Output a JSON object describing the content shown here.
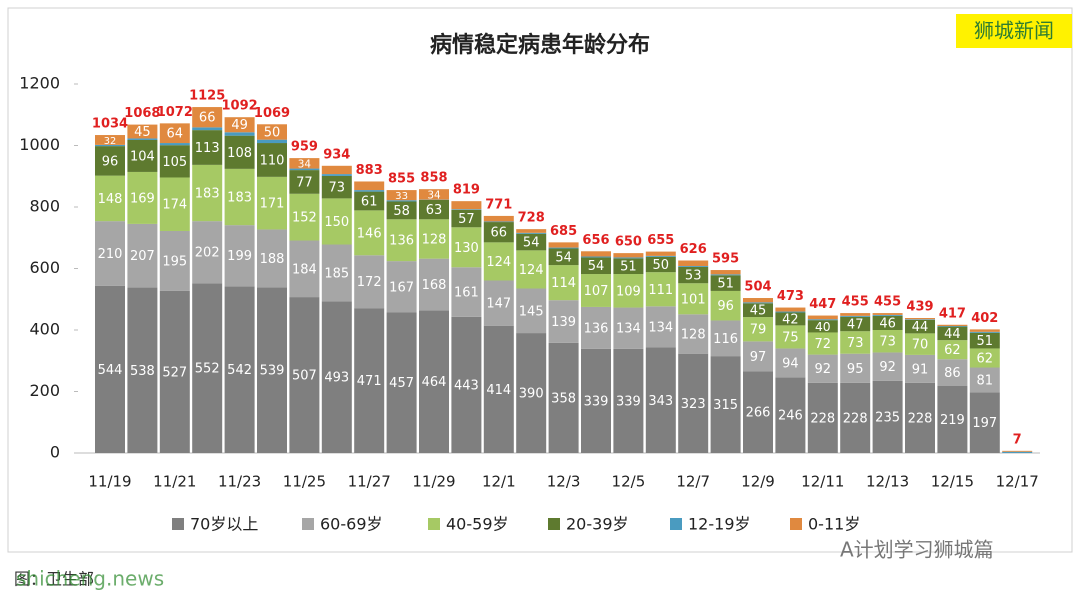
{
  "chart_data": {
    "type": "stacked_bar",
    "title": "病情稳定病患年龄分布",
    "categories": [
      "11/19",
      null,
      "11/21",
      null,
      "11/23",
      null,
      "11/25",
      null,
      "11/27",
      null,
      "11/29",
      null,
      "12/1",
      null,
      "12/3",
      null,
      "12/5",
      null,
      "12/7",
      null,
      "12/9",
      null,
      "12/11",
      null,
      "12/13",
      null,
      "12/15",
      null,
      "12/17"
    ],
    "series": [
      {
        "name": "70岁以上",
        "color": "#7f7f7f",
        "values": [
          544,
          538,
          527,
          552,
          542,
          539,
          507,
          493,
          471,
          457,
          464,
          443,
          414,
          390,
          358,
          339,
          339,
          343,
          323,
          315,
          266,
          246,
          228,
          228,
          235,
          228,
          219,
          197,
          null
        ]
      },
      {
        "name": "60-69岁",
        "color": "#a6a6a6",
        "values": [
          210,
          207,
          195,
          202,
          199,
          188,
          184,
          185,
          172,
          167,
          168,
          161,
          147,
          145,
          139,
          136,
          134,
          134,
          128,
          116,
          97,
          94,
          92,
          95,
          92,
          91,
          86,
          81,
          null
        ]
      },
      {
        "name": "40-59岁",
        "color": "#a6c964",
        "values": [
          148,
          169,
          174,
          183,
          183,
          171,
          152,
          150,
          146,
          136,
          128,
          130,
          124,
          124,
          114,
          107,
          109,
          111,
          101,
          96,
          79,
          75,
          72,
          73,
          73,
          70,
          62,
          62,
          null
        ]
      },
      {
        "name": "20-39岁",
        "color": "#5e7a2f",
        "values": [
          96,
          104,
          105,
          113,
          108,
          110,
          77,
          73,
          61,
          58,
          63,
          57,
          66,
          54,
          54,
          54,
          51,
          50,
          53,
          51,
          45,
          42,
          40,
          47,
          46,
          44,
          44,
          51,
          null
        ]
      },
      {
        "name": "12-19岁",
        "color": "#4a9bc0",
        "values": [
          4,
          5,
          7,
          9,
          11,
          11,
          5,
          6,
          5,
          4,
          1,
          2,
          2,
          3,
          3,
          3,
          3,
          3,
          3,
          3,
          3,
          3,
          3,
          3,
          3,
          2,
          2,
          3,
          4
        ]
      },
      {
        "name": "0-11岁",
        "color": "#e0893f",
        "values": [
          32,
          45,
          64,
          66,
          49,
          50,
          34,
          27,
          28,
          33,
          34,
          26,
          18,
          12,
          17,
          17,
          14,
          14,
          18,
          14,
          14,
          13,
          12,
          9,
          6,
          4,
          4,
          8,
          3
        ]
      }
    ],
    "totals": [
      1034,
      1068,
      1072,
      1125,
      1092,
      1069,
      959,
      934,
      883,
      855,
      858,
      819,
      771,
      728,
      685,
      656,
      650,
      655,
      626,
      595,
      504,
      473,
      447,
      455,
      455,
      439,
      417,
      402,
      7
    ],
    "totals_color": "#e02020",
    "ylim": [
      0,
      1200
    ],
    "yticks": [
      0,
      200,
      400,
      600,
      800,
      1000,
      1200
    ],
    "grid": false,
    "legend": "bottom",
    "watermarks": {
      "brand": "狮城新闻",
      "account": "A计划学习狮城篇",
      "source": "图：卫生部",
      "site": "shicheng.news"
    }
  }
}
